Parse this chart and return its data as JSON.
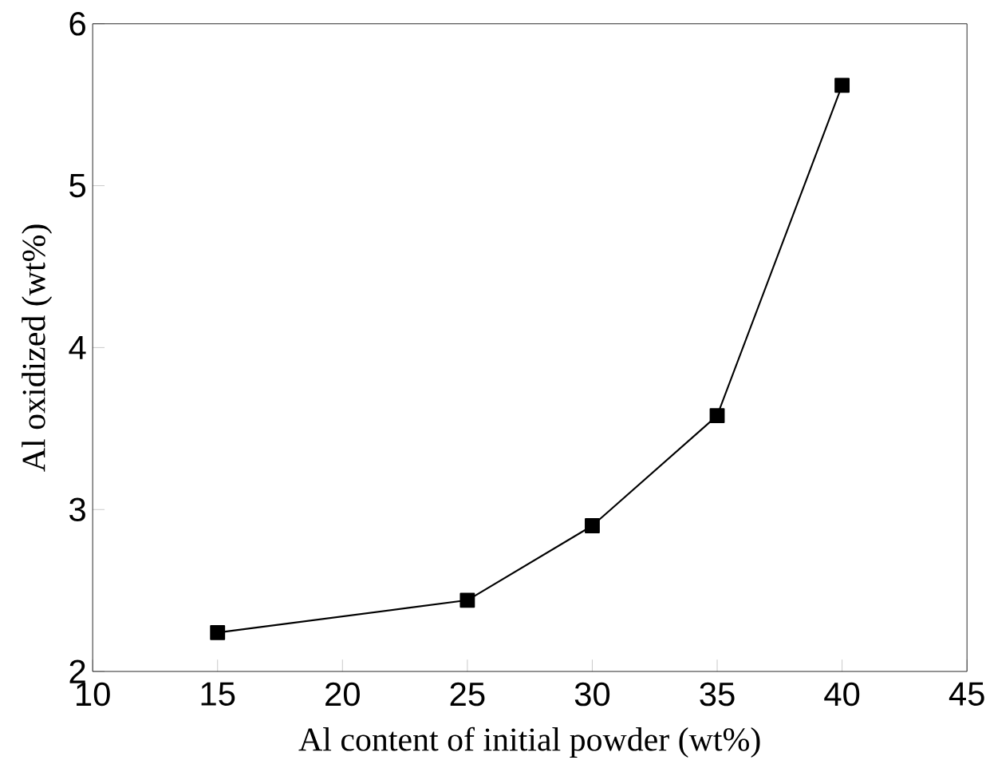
{
  "chart_data": {
    "type": "line",
    "xlabel": "Al content of initial powder (wt%)",
    "ylabel": "Al oxidized (wt%)",
    "x": [
      15,
      25,
      30,
      35,
      40
    ],
    "series": [
      {
        "color": "#000000",
        "values": [
          2.24,
          2.44,
          2.9,
          3.58,
          5.62
        ]
      }
    ],
    "xlim": [
      10,
      45
    ],
    "ylim": [
      2,
      6
    ],
    "xticks": [
      10,
      15,
      20,
      25,
      30,
      35,
      40,
      45
    ],
    "yticks": [
      2,
      3,
      4,
      5,
      6
    ],
    "marker": "square",
    "line_style": "solid",
    "grid": false
  }
}
